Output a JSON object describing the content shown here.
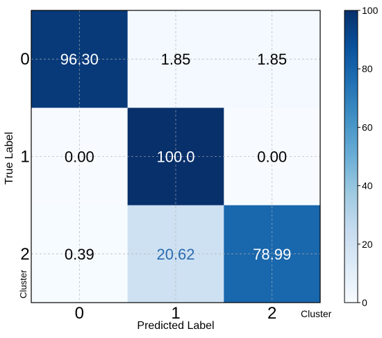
{
  "chart_data": {
    "type": "heatmap",
    "x_tick_labels": [
      "0",
      "1",
      "2"
    ],
    "y_tick_labels": [
      "0",
      "1",
      "2"
    ],
    "values": [
      [
        96.3,
        1.85,
        1.85
      ],
      [
        0.0,
        100.0,
        0.0
      ],
      [
        0.39,
        20.62,
        78.99
      ]
    ],
    "cell_labels": [
      [
        "96.30",
        "1.85",
        "1.85"
      ],
      [
        "0.00",
        "100.0",
        "0.00"
      ],
      [
        "0.39",
        "20.62",
        "78.99"
      ]
    ],
    "xlabel": "Predicted Label",
    "ylabel": "True Label",
    "x_cluster_label": "Cluster",
    "y_cluster_label": "Cluster",
    "colorbar": {
      "range": [
        0,
        100
      ],
      "ticks": [
        "0",
        "20",
        "40",
        "60",
        "80",
        "100"
      ],
      "colormap": "Blues"
    },
    "grid": true
  }
}
